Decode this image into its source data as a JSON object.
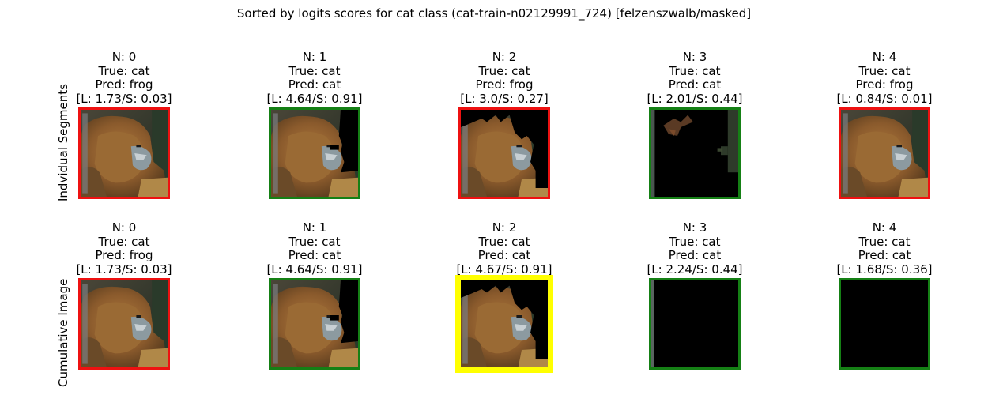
{
  "title": "Sorted by logits scores for cat class (cat-train-n02129991_724) [felzenszwalb/masked]",
  "row_labels": [
    "Indvidual Segments",
    "Cumulative Image"
  ],
  "colors": {
    "correct": "#158015",
    "wrong": "#ee1111",
    "best": "#ffff00"
  },
  "panels": [
    {
      "row": 0,
      "n": "N: 0",
      "true": "True: cat",
      "pred": "Pred: frog",
      "score": "[L: 1.73/S: 0.03]",
      "border": "wrong",
      "content": "full"
    },
    {
      "row": 0,
      "n": "N: 1",
      "true": "True: cat",
      "pred": "Pred: cat",
      "score": "[L: 4.64/S: 0.91]",
      "border": "correct",
      "content": "mask-right"
    },
    {
      "row": 0,
      "n": "N: 2",
      "true": "True: cat",
      "pred": "Pred: frog",
      "score": "[L: 3.0/S: 0.27]",
      "border": "wrong",
      "content": "mask-topright"
    },
    {
      "row": 0,
      "n": "N: 3",
      "true": "True: cat",
      "pred": "Pred: cat",
      "score": "[L: 2.01/S: 0.44]",
      "border": "correct",
      "content": "sliver"
    },
    {
      "row": 0,
      "n": "N: 4",
      "true": "True: cat",
      "pred": "Pred: frog",
      "score": "[L: 0.84/S: 0.01]",
      "border": "wrong",
      "content": "full"
    },
    {
      "row": 1,
      "n": "N: 0",
      "true": "True: cat",
      "pred": "Pred: frog",
      "score": "[L: 1.73/S: 0.03]",
      "border": "wrong",
      "content": "full"
    },
    {
      "row": 1,
      "n": "N: 1",
      "true": "True: cat",
      "pred": "Pred: cat",
      "score": "[L: 4.64/S: 0.91]",
      "border": "correct",
      "content": "mask-right"
    },
    {
      "row": 1,
      "n": "N: 2",
      "true": "True: cat",
      "pred": "Pred: cat",
      "score": "[L: 4.67/S: 0.91]",
      "border": "best",
      "content": "mask-topright"
    },
    {
      "row": 1,
      "n": "N: 3",
      "true": "True: cat",
      "pred": "Pred: cat",
      "score": "[L: 2.24/S: 0.44]",
      "border": "correct",
      "content": "edge"
    },
    {
      "row": 1,
      "n": "N: 4",
      "true": "True: cat",
      "pred": "Pred: cat",
      "score": "[L: 1.68/S: 0.36]",
      "border": "correct",
      "content": "black"
    }
  ]
}
